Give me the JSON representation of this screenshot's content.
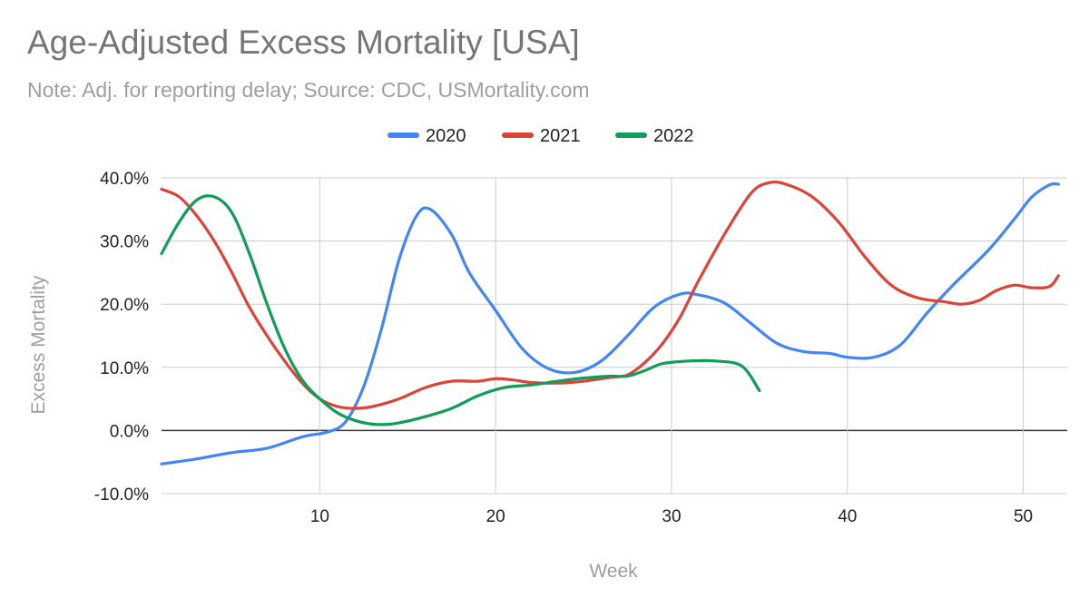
{
  "chart_data": {
    "type": "line",
    "title": "Age-Adjusted Excess Mortality [USA]",
    "subtitle": "Note: Adj. for reporting delay; Source: CDC, USMortality.com",
    "xlabel": "Week",
    "ylabel": "Excess Mortality",
    "xlim": [
      1,
      52.5
    ],
    "ylim": [
      -10,
      40
    ],
    "x_ticks": [
      10,
      20,
      30,
      40,
      50
    ],
    "x_tick_labels": [
      "10",
      "20",
      "30",
      "40",
      "50"
    ],
    "y_ticks": [
      -10,
      0,
      10,
      20,
      30,
      40
    ],
    "y_tick_labels": [
      "-10.0%",
      "0.0%",
      "10.0%",
      "20.0%",
      "30.0%",
      "40.0%"
    ],
    "grid": true,
    "legend_position": "top",
    "series": [
      {
        "name": "2020",
        "color": "#4285f4",
        "points": [
          [
            1,
            -5.3
          ],
          [
            3,
            -4.5
          ],
          [
            5,
            -3.5
          ],
          [
            7,
            -2.8
          ],
          [
            9,
            -1.0
          ],
          [
            10.5,
            -0.2
          ],
          [
            11.5,
            1.5
          ],
          [
            12.5,
            7
          ],
          [
            13.5,
            16
          ],
          [
            14.5,
            27
          ],
          [
            15.5,
            34
          ],
          [
            16.3,
            35
          ],
          [
            17.5,
            31
          ],
          [
            18.5,
            25
          ],
          [
            20,
            19
          ],
          [
            21.5,
            13
          ],
          [
            23,
            9.8
          ],
          [
            24.5,
            9.2
          ],
          [
            26,
            11
          ],
          [
            27.5,
            15
          ],
          [
            29,
            19.5
          ],
          [
            30.5,
            21.6
          ],
          [
            31.5,
            21.5
          ],
          [
            33,
            20.2
          ],
          [
            34.5,
            17
          ],
          [
            36,
            13.8
          ],
          [
            37.5,
            12.5
          ],
          [
            39,
            12.2
          ],
          [
            40,
            11.6
          ],
          [
            41.5,
            11.6
          ],
          [
            43,
            13.5
          ],
          [
            44.5,
            18.5
          ],
          [
            46,
            23
          ],
          [
            48,
            28.5
          ],
          [
            49.5,
            33.5
          ],
          [
            50.5,
            37
          ],
          [
            51.5,
            38.9
          ],
          [
            52,
            39
          ]
        ]
      },
      {
        "name": "2021",
        "color": "#db4437",
        "points": [
          [
            1,
            38.2
          ],
          [
            2,
            37
          ],
          [
            3,
            34
          ],
          [
            4,
            30
          ],
          [
            5,
            25
          ],
          [
            6,
            19.5
          ],
          [
            7,
            15
          ],
          [
            8,
            11
          ],
          [
            9,
            7.5
          ],
          [
            10,
            5
          ],
          [
            11,
            3.8
          ],
          [
            12,
            3.5
          ],
          [
            13,
            3.8
          ],
          [
            14.5,
            5
          ],
          [
            16,
            6.8
          ],
          [
            17.5,
            7.8
          ],
          [
            19,
            7.8
          ],
          [
            20,
            8.2
          ],
          [
            21,
            8
          ],
          [
            22,
            7.6
          ],
          [
            23.5,
            7.5
          ],
          [
            25,
            7.8
          ],
          [
            26.5,
            8.4
          ],
          [
            27.5,
            8.8
          ],
          [
            28.5,
            10.8
          ],
          [
            29.5,
            13.8
          ],
          [
            30.5,
            18
          ],
          [
            31.5,
            23.5
          ],
          [
            33,
            31
          ],
          [
            34.5,
            37.5
          ],
          [
            35.5,
            39.2
          ],
          [
            36.5,
            39
          ],
          [
            38,
            37
          ],
          [
            39.5,
            33
          ],
          [
            41,
            27.5
          ],
          [
            42.5,
            23
          ],
          [
            44,
            21
          ],
          [
            45.5,
            20.4
          ],
          [
            46.5,
            20
          ],
          [
            47.5,
            20.6
          ],
          [
            48.5,
            22.2
          ],
          [
            49.5,
            23
          ],
          [
            50.5,
            22.6
          ],
          [
            51.5,
            22.8
          ],
          [
            52,
            24.5
          ]
        ]
      },
      {
        "name": "2022",
        "color": "#0f9d58",
        "points": [
          [
            1,
            28
          ],
          [
            2,
            33
          ],
          [
            3,
            36.5
          ],
          [
            4,
            37
          ],
          [
            5,
            34.5
          ],
          [
            6,
            28
          ],
          [
            7,
            20
          ],
          [
            8,
            13
          ],
          [
            9,
            8
          ],
          [
            10,
            5
          ],
          [
            11,
            2.8
          ],
          [
            12,
            1.6
          ],
          [
            13,
            1.0
          ],
          [
            14,
            1.0
          ],
          [
            15,
            1.5
          ],
          [
            16,
            2.2
          ],
          [
            17.5,
            3.5
          ],
          [
            19,
            5.5
          ],
          [
            20.5,
            6.8
          ],
          [
            22,
            7.2
          ],
          [
            23.5,
            7.8
          ],
          [
            25,
            8.3
          ],
          [
            26.5,
            8.6
          ],
          [
            27.5,
            8.6
          ],
          [
            28.5,
            9.5
          ],
          [
            29.5,
            10.6
          ],
          [
            31,
            11
          ],
          [
            32.5,
            11
          ],
          [
            34,
            10.2
          ],
          [
            35,
            6.3
          ]
        ]
      }
    ]
  }
}
